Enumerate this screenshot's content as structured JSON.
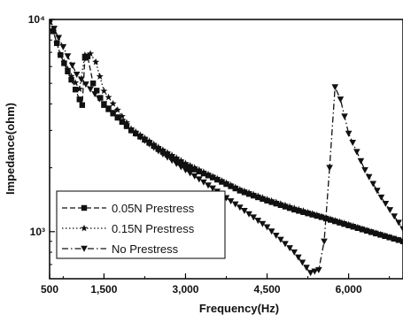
{
  "chart_data": {
    "type": "line",
    "title": "",
    "xlabel": "Frequency(Hz)",
    "ylabel": "Impedance(ohm)",
    "xlim": [
      500,
      7000
    ],
    "ylim": [
      600,
      10000
    ],
    "yscale": "log",
    "grid": false,
    "legend_position": "bottom-left",
    "x_ticks": [
      500,
      1500,
      3000,
      4500,
      6000
    ],
    "x_tick_labels": [
      "500",
      "1,500",
      "3,000",
      "4,500",
      "6,000"
    ],
    "y_ticks": [
      1000,
      10000
    ],
    "y_tick_labels": [
      "10³",
      "10⁴"
    ],
    "series": [
      {
        "name": "0.05N Prestress",
        "marker": "square",
        "line_style": "dashed",
        "x": [
          500,
          700,
          900,
          1050,
          1100,
          1150,
          1200,
          1300,
          1500,
          2000,
          2500,
          3000,
          3500,
          4000,
          4500,
          5000,
          5500,
          6000,
          6500,
          7000
        ],
        "y": [
          10000,
          6800,
          5200,
          4200,
          3950,
          6600,
          6700,
          5000,
          3950,
          3000,
          2450,
          2050,
          1800,
          1560,
          1400,
          1270,
          1170,
          1070,
          980,
          900
        ]
      },
      {
        "name": "0.15N Prestress",
        "marker": "star",
        "line_style": "dotted",
        "x": [
          500,
          700,
          900,
          1050,
          1150,
          1250,
          1350,
          1500,
          2000,
          2500,
          3000,
          3500,
          4000,
          4500,
          5000,
          5500,
          6000,
          6500,
          7000
        ],
        "y": [
          10000,
          6800,
          5400,
          4700,
          6800,
          6900,
          6300,
          4600,
          3050,
          2500,
          2100,
          1820,
          1580,
          1420,
          1290,
          1180,
          1080,
          985,
          900
        ]
      },
      {
        "name": "No Prestress",
        "marker": "triangle-down",
        "line_style": "dash-dot",
        "x": [
          500,
          1000,
          1500,
          2000,
          2500,
          3000,
          3500,
          4000,
          4500,
          5000,
          5300,
          5450,
          5550,
          5650,
          5750,
          5850,
          6000,
          6300,
          6600,
          7000
        ],
        "y": [
          10000,
          5500,
          4000,
          3000,
          2400,
          1950,
          1600,
          1300,
          1050,
          800,
          640,
          660,
          900,
          2000,
          4800,
          4200,
          2900,
          1950,
          1450,
          1030
        ]
      }
    ]
  }
}
